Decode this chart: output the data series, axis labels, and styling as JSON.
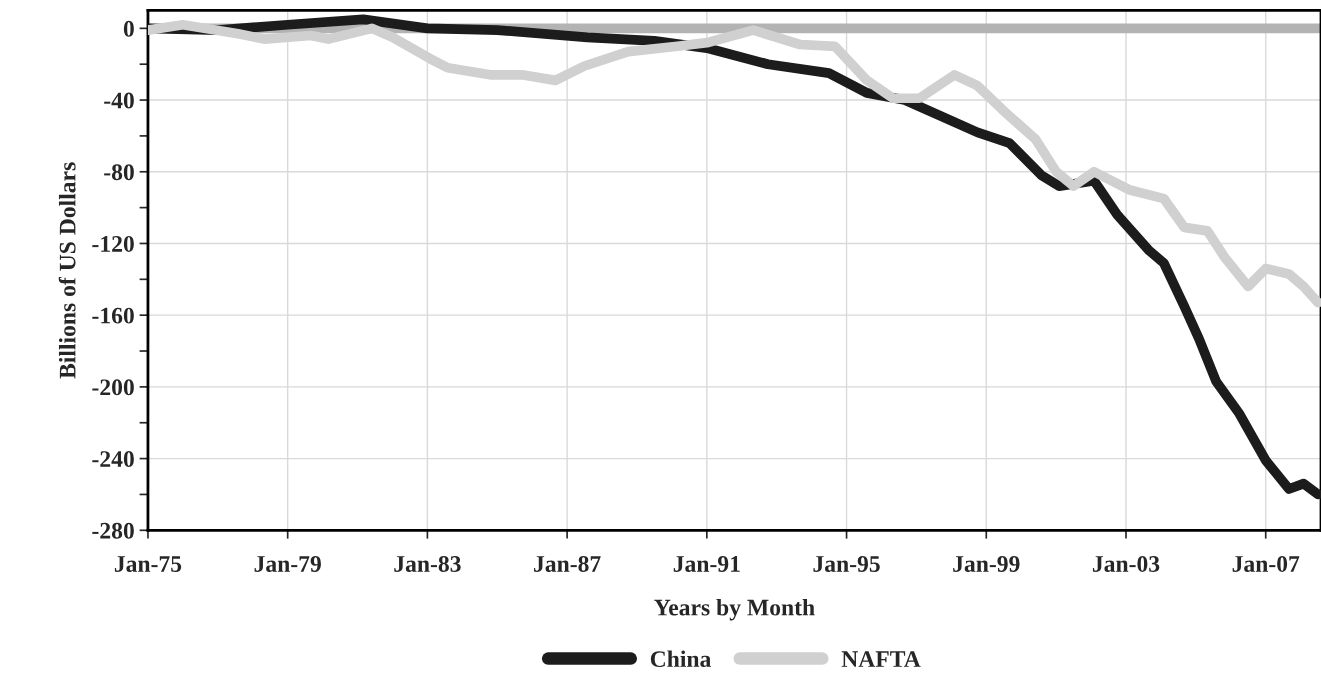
{
  "chart_data": {
    "type": "line",
    "xlabel": "Years by Month",
    "ylabel": "Billions of US Dollars",
    "xlim": [
      "1975-01",
      "2008-08"
    ],
    "xticks": [
      {
        "value": "1975-01",
        "label": "Jan-75"
      },
      {
        "value": "1979-01",
        "label": "Jan-79"
      },
      {
        "value": "1983-01",
        "label": "Jan-83"
      },
      {
        "value": "1987-01",
        "label": "Jan-87"
      },
      {
        "value": "1991-01",
        "label": "Jan-91"
      },
      {
        "value": "1995-01",
        "label": "Jan-95"
      },
      {
        "value": "1999-01",
        "label": "Jan-99"
      },
      {
        "value": "2003-01",
        "label": "Jan-03"
      },
      {
        "value": "2007-01",
        "label": "Jan-07"
      }
    ],
    "ylim": [
      -280,
      10
    ],
    "yticks": [
      0,
      {
        "value": -20,
        "label": null
      },
      -40,
      {
        "value": -60,
        "label": null
      },
      -80,
      {
        "value": -100,
        "label": null
      },
      -120,
      {
        "value": -140,
        "label": null
      },
      -160,
      {
        "value": -180,
        "label": null
      },
      -200,
      {
        "value": -220,
        "label": null
      },
      -240,
      {
        "value": -260,
        "label": null
      },
      -280
    ],
    "grid": true,
    "legend": "bottom",
    "line_style": "solid",
    "marker": "none",
    "ref_lines": [
      {
        "axis": "y",
        "value": 0,
        "color": "#b3b3b3"
      }
    ],
    "series": [
      {
        "name": "China",
        "color": "#1c1c1c",
        "x": [
          "1975-01",
          "1977-01",
          "1979-01",
          "1981-03",
          "1983-01",
          "1985-01",
          "1987-08",
          "1989-07",
          "1991-01",
          "1992-10",
          "1994-07",
          "1995-08",
          "1996-09",
          "1998-10",
          "1999-09",
          "2000-08",
          "2001-02",
          "2002-02",
          "2002-10",
          "2003-09",
          "2004-02",
          "2004-09",
          "2005-02",
          "2005-08",
          "2006-04",
          "2007-01",
          "2007-09",
          "2008-02",
          "2008-07"
        ],
        "values": [
          0,
          -1,
          2,
          5,
          0,
          -1,
          -5,
          -7,
          -11,
          -20,
          -25,
          -36,
          -40,
          -58,
          -64,
          -82,
          -88,
          -85,
          -104,
          -124,
          -131,
          -155,
          -173,
          -197,
          -215,
          -241,
          -257,
          -254,
          -260
        ]
      },
      {
        "name": "NAFTA",
        "color": "#d0d0d0",
        "x": [
          "1975-01",
          "1976-01",
          "1977-08",
          "1978-05",
          "1979-09",
          "1980-03",
          "1981-06",
          "1982-01",
          "1983-02",
          "1983-08",
          "1984-11",
          "1985-10",
          "1986-09",
          "1987-07",
          "1988-10",
          "1990-03",
          "1991-01",
          "1992-05",
          "1993-09",
          "1994-09",
          "1995-08",
          "1996-05",
          "1997-02",
          "1998-02",
          "1998-10",
          "1999-07",
          "2000-06",
          "2001-01",
          "2001-07",
          "2002-02",
          "2003-02",
          "2004-02",
          "2004-09",
          "2005-05",
          "2005-11",
          "2006-07",
          "2007-01",
          "2007-09",
          "2008-02",
          "2008-07"
        ],
        "values": [
          -1,
          2,
          -3,
          -6,
          -4,
          -6,
          0,
          -5,
          -17,
          -22,
          -26,
          -26,
          -29,
          -21,
          -13,
          -10,
          -8,
          -1,
          -9,
          -10,
          -29,
          -39,
          -39,
          -26,
          -32,
          -46,
          -62,
          -80,
          -88,
          -80,
          -90,
          -95,
          -111,
          -113,
          -128,
          -144,
          -134,
          -137,
          -144,
          -153
        ]
      }
    ]
  }
}
